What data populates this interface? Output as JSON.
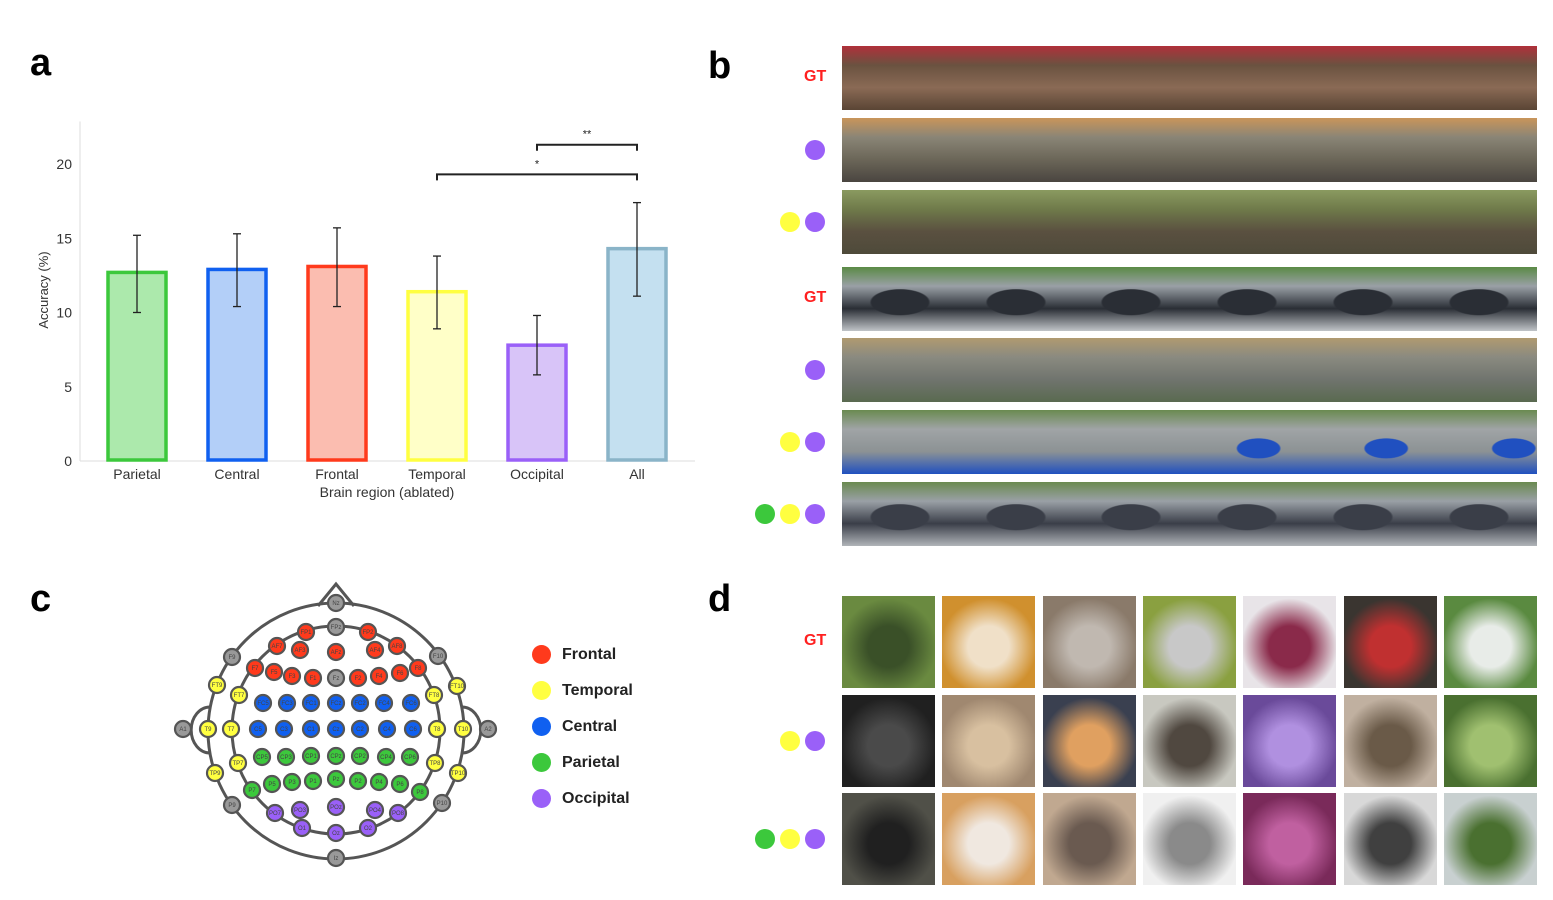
{
  "panels": {
    "a": "a",
    "b": "b",
    "c": "c",
    "d": "d"
  },
  "region_colors": {
    "Frontal": "#ff3a1c",
    "Temporal": "#ffff40",
    "Central": "#1060f0",
    "Parietal": "#3cc83c",
    "Occipital": "#9a60f8",
    "Other": "#999999"
  },
  "chart_data": {
    "type": "bar",
    "categories": [
      "Parietal",
      "Central",
      "Frontal",
      "Temporal",
      "Occipital",
      "All"
    ],
    "values": [
      12.7,
      12.9,
      13.1,
      11.4,
      7.8,
      14.3
    ],
    "error_low": [
      10.0,
      10.4,
      10.4,
      8.9,
      5.8,
      11.1
    ],
    "error_high": [
      15.2,
      15.3,
      15.7,
      13.8,
      9.8,
      17.4
    ],
    "fill_colors": [
      "#ace9ac",
      "#b3cff8",
      "#fbbdb0",
      "#ffffc8",
      "#d8c4f8",
      "#c4e0f0"
    ],
    "stroke_colors": [
      "#3cc83c",
      "#1060f0",
      "#ff3a1c",
      "#ffff40",
      "#9a60f8",
      "#8ab4c8"
    ],
    "title": "",
    "xlabel": "Brain region (ablated)",
    "ylabel": "Accuracy (%)",
    "ylim": [
      0,
      23
    ],
    "yticks": [
      0,
      5,
      10,
      15,
      20
    ],
    "grid": false,
    "significance": [
      {
        "from": "Occipital",
        "to": "All",
        "label": "**",
        "level": 21.3
      },
      {
        "from": "Temporal",
        "to": "All",
        "label": "*",
        "level": 19.3
      }
    ]
  },
  "panel_b": {
    "rows": [
      {
        "label": "GT",
        "dots": []
      },
      {
        "label": "",
        "dots": [
          "Occipital"
        ]
      },
      {
        "label": "",
        "dots": [
          "Temporal",
          "Occipital"
        ]
      },
      {
        "label": "GT",
        "dots": []
      },
      {
        "label": "",
        "dots": [
          "Occipital"
        ]
      },
      {
        "label": "",
        "dots": [
          "Temporal",
          "Occipital"
        ]
      },
      {
        "label": "",
        "dots": [
          "Parietal",
          "Temporal",
          "Occipital"
        ]
      }
    ]
  },
  "panel_c": {
    "legend": [
      "Frontal",
      "Temporal",
      "Central",
      "Parietal",
      "Occipital"
    ],
    "electrodes": {
      "Frontal": [
        "FP1",
        "FP2",
        "AF7",
        "AF3",
        "AFz",
        "AF4",
        "AF8",
        "F7",
        "F5",
        "F3",
        "F1",
        "F2",
        "F4",
        "F6",
        "F8"
      ],
      "Temporal": [
        "FT9",
        "FT10",
        "FT7",
        "FT8",
        "T9",
        "T7",
        "T8",
        "T10",
        "TP7",
        "TP8",
        "TP9",
        "TP10"
      ],
      "Central": [
        "FC5",
        "FC3",
        "FC1",
        "FCz",
        "FC2",
        "FC4",
        "FC6",
        "C5",
        "C3",
        "C1",
        "Cz",
        "C2",
        "C4",
        "C6"
      ],
      "Parietal": [
        "CP5",
        "CP3",
        "CP1",
        "CPz",
        "CP2",
        "CP4",
        "CP6",
        "P7",
        "P5",
        "P3",
        "P1",
        "Pz",
        "P2",
        "P4",
        "P6",
        "P8"
      ],
      "Occipital": [
        "PO7",
        "PO3",
        "POz",
        "PO4",
        "PO8",
        "O1",
        "Oz",
        "O2"
      ],
      "Other": [
        "Nz",
        "FPz",
        "F9",
        "F10",
        "Fz",
        "A1",
        "A2",
        "P9",
        "P10",
        "Iz"
      ]
    }
  },
  "panel_d": {
    "rows": [
      {
        "label": "GT",
        "dots": []
      },
      {
        "label": "",
        "dots": [
          "Temporal",
          "Occipital"
        ]
      },
      {
        "label": "",
        "dots": [
          "Parietal",
          "Temporal",
          "Occipital"
        ]
      }
    ]
  }
}
